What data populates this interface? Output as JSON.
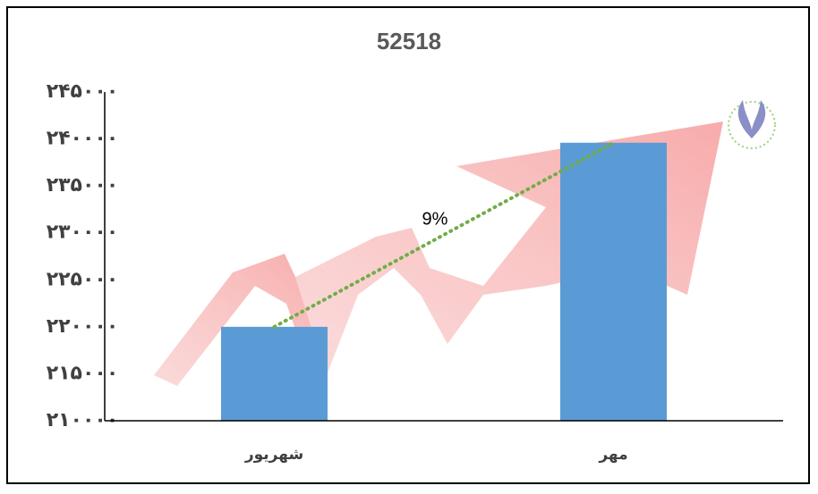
{
  "chart_data": {
    "type": "bar",
    "title": "52518",
    "annotation": "9%",
    "categories": [
      "شهریور",
      "مهر"
    ],
    "values": [
      220000,
      239600
    ],
    "color": "#5b9bd5",
    "trend_color": "#70ad47",
    "ylim": [
      210000,
      245000
    ],
    "yticks": [
      {
        "value": 210000,
        "label": "۲۱۰۰۰۰"
      },
      {
        "value": 215000,
        "label": "۲۱۵۰۰۰"
      },
      {
        "value": 220000,
        "label": "۲۲۰۰۰۰"
      },
      {
        "value": 225000,
        "label": "۲۲۵۰۰۰"
      },
      {
        "value": 230000,
        "label": "۲۳۰۰۰۰"
      },
      {
        "value": 235000,
        "label": "۲۳۵۰۰۰"
      },
      {
        "value": 240000,
        "label": "۲۴۰۰۰۰"
      },
      {
        "value": 245000,
        "label": "۲۴۵۰۰۰"
      }
    ],
    "grid": false
  }
}
